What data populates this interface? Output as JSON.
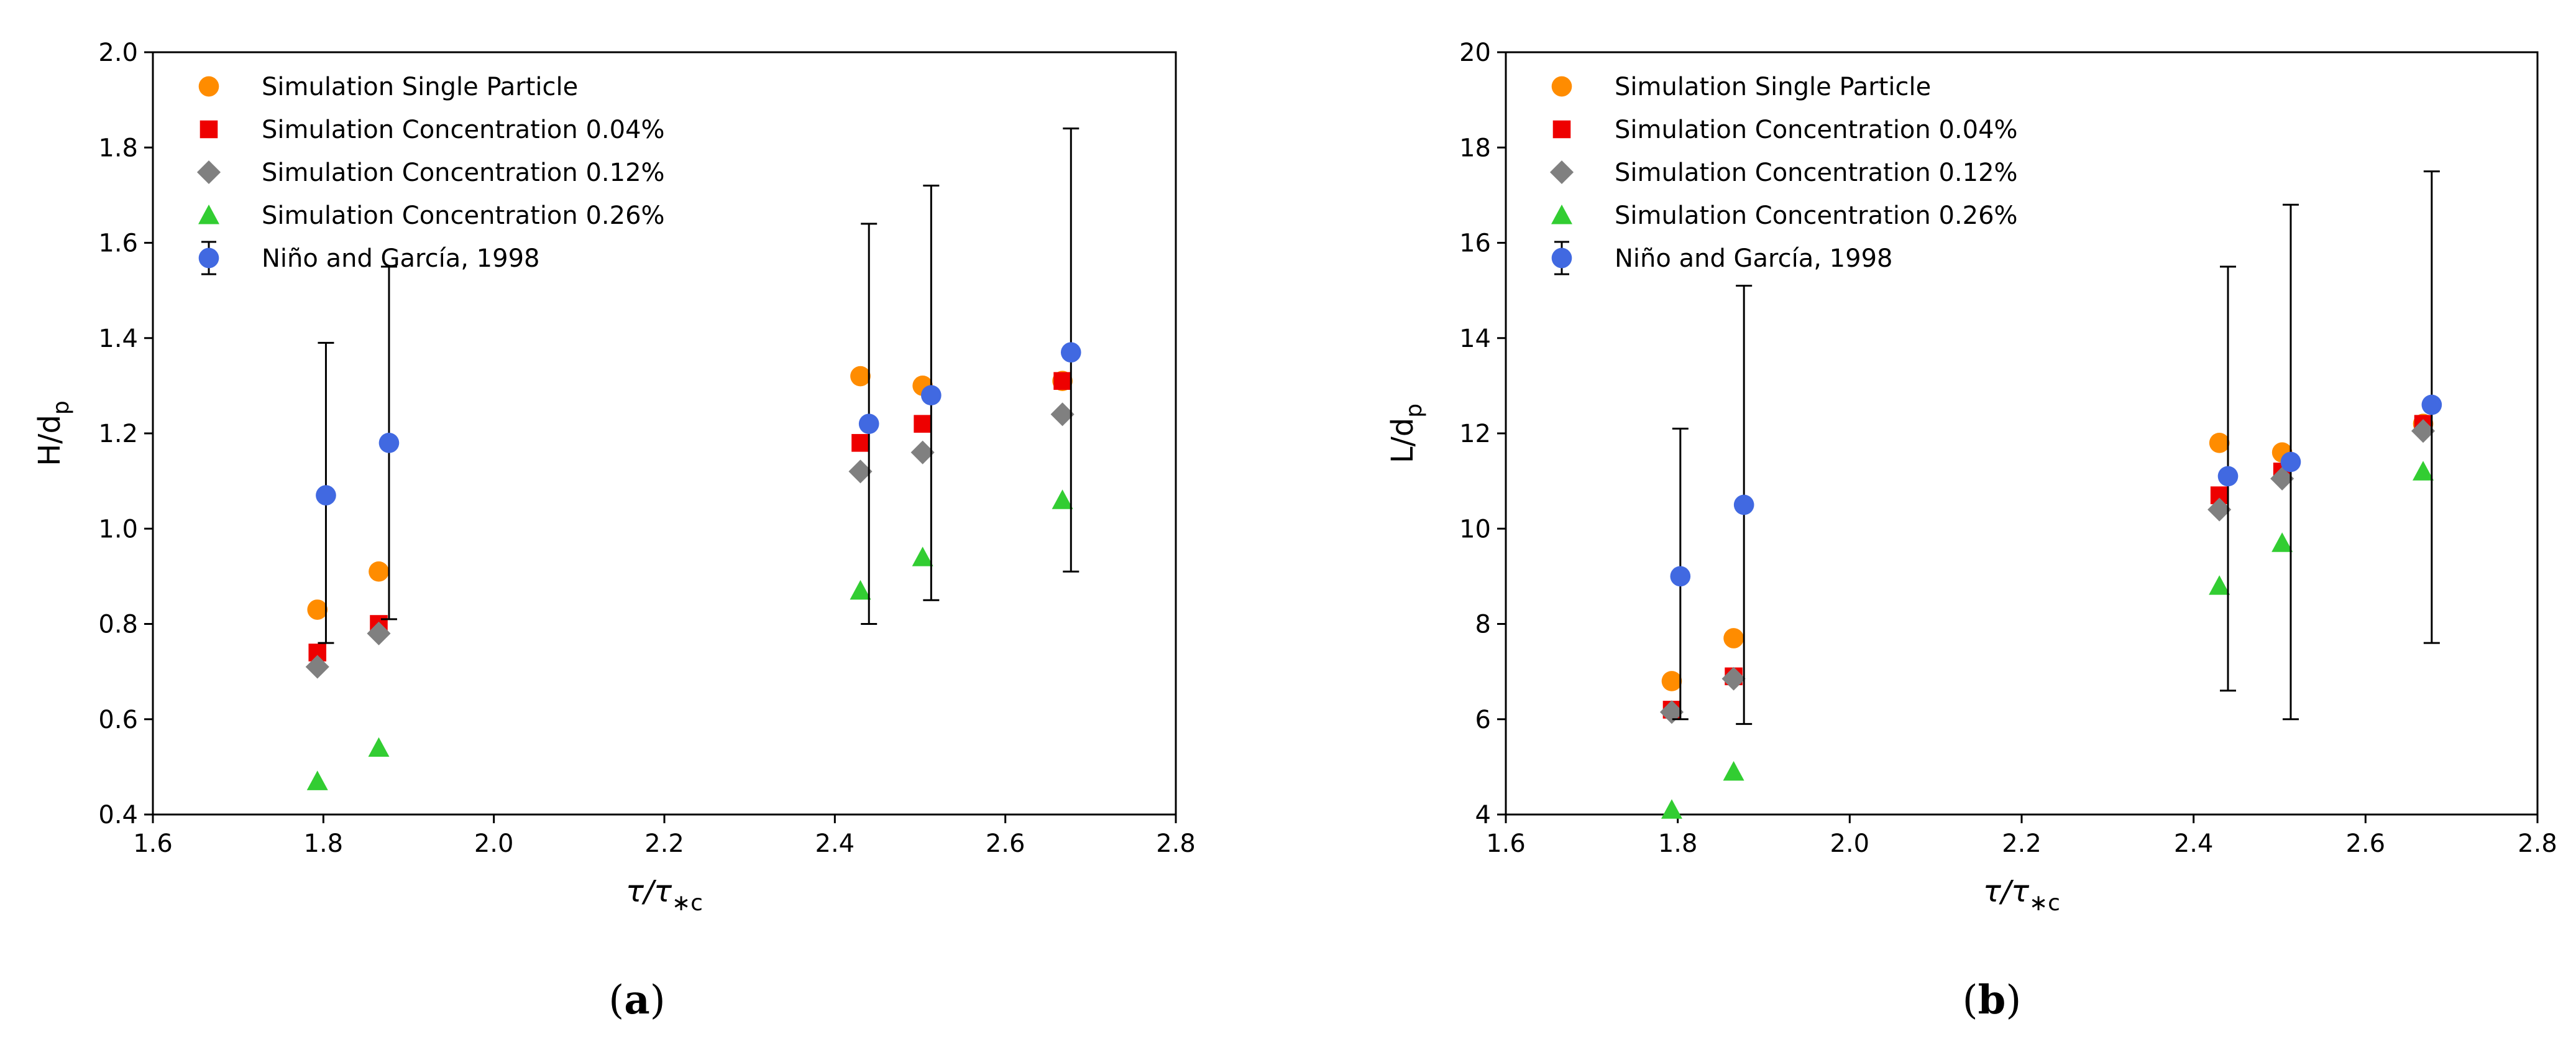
{
  "chart_data": [
    {
      "type": "scatter",
      "panel_label_pre": "(",
      "panel_label_letter": "a",
      "panel_label_post": ")",
      "xlabel_main": "τ/τ",
      "xlabel_sub": "∗c",
      "ylabel_main": "H/d",
      "ylabel_sub": "p",
      "xlim": [
        1.6,
        2.8
      ],
      "ylim": [
        0.4,
        2.0
      ],
      "xticks": [
        "1.6",
        "1.8",
        "2.0",
        "2.2",
        "2.4",
        "2.6",
        "2.8"
      ],
      "yticks": [
        "0.4",
        "0.6",
        "0.8",
        "1.0",
        "1.2",
        "1.4",
        "1.6",
        "1.8",
        "2.0"
      ],
      "legend_position": "top-left",
      "series": [
        {
          "name": "Simulation Single Particle",
          "marker": "circle",
          "color": "#ff8c00",
          "points": [
            [
              1.793,
              0.83
            ],
            [
              1.865,
              0.91
            ],
            [
              2.43,
              1.32
            ],
            [
              2.503,
              1.3
            ],
            [
              2.667,
              1.31
            ]
          ]
        },
        {
          "name": "Simulation Concentration 0.04%",
          "marker": "square",
          "color": "#ee0000",
          "points": [
            [
              1.793,
              0.74
            ],
            [
              1.865,
              0.8
            ],
            [
              2.43,
              1.18
            ],
            [
              2.503,
              1.22
            ],
            [
              2.667,
              1.31
            ]
          ]
        },
        {
          "name": "Simulation Concentration 0.12%",
          "marker": "diamond",
          "color": "#808080",
          "points": [
            [
              1.793,
              0.71
            ],
            [
              1.865,
              0.78
            ],
            [
              2.43,
              1.12
            ],
            [
              2.503,
              1.16
            ],
            [
              2.667,
              1.24
            ]
          ]
        },
        {
          "name": "Simulation Concentration 0.26%",
          "marker": "triangle",
          "color": "#32cd32",
          "points": [
            [
              1.793,
              0.47
            ],
            [
              1.865,
              0.54
            ],
            [
              2.43,
              0.87
            ],
            [
              2.503,
              0.94
            ],
            [
              2.667,
              1.06
            ]
          ]
        },
        {
          "name": "Niño and García, 1998",
          "marker": "circle",
          "color": "#4169e1",
          "errorbars": true,
          "points": [
            [
              1.803,
              1.07
            ],
            [
              1.877,
              1.18
            ],
            [
              2.44,
              1.22
            ],
            [
              2.513,
              1.28
            ],
            [
              2.677,
              1.37
            ]
          ],
          "error_low": [
            0.76,
            0.81,
            0.8,
            0.85,
            0.91
          ],
          "error_high": [
            1.39,
            1.55,
            1.64,
            1.72,
            1.84
          ]
        }
      ]
    },
    {
      "type": "scatter",
      "panel_label_pre": "(",
      "panel_label_letter": "b",
      "panel_label_post": ")",
      "xlabel_main": "τ/τ",
      "xlabel_sub": "∗c",
      "ylabel_main": "L/d",
      "ylabel_sub": "p",
      "xlim": [
        1.6,
        2.8
      ],
      "ylim": [
        4,
        20
      ],
      "xticks": [
        "1.6",
        "1.8",
        "2.0",
        "2.2",
        "2.4",
        "2.6",
        "2.8"
      ],
      "yticks": [
        "4",
        "6",
        "8",
        "10",
        "12",
        "14",
        "16",
        "18",
        "20"
      ],
      "legend_position": "top-left",
      "series": [
        {
          "name": "Simulation Single Particle",
          "marker": "circle",
          "color": "#ff8c00",
          "points": [
            [
              1.793,
              6.8
            ],
            [
              1.865,
              7.7
            ],
            [
              2.43,
              11.8
            ],
            [
              2.503,
              11.6
            ],
            [
              2.667,
              12.2
            ]
          ]
        },
        {
          "name": "Simulation Concentration 0.04%",
          "marker": "square",
          "color": "#ee0000",
          "points": [
            [
              1.793,
              6.2
            ],
            [
              1.865,
              6.9
            ],
            [
              2.43,
              10.7
            ],
            [
              2.503,
              11.2
            ],
            [
              2.667,
              12.2
            ]
          ]
        },
        {
          "name": "Simulation Concentration 0.12%",
          "marker": "diamond",
          "color": "#808080",
          "points": [
            [
              1.793,
              6.15
            ],
            [
              1.865,
              6.85
            ],
            [
              2.43,
              10.4
            ],
            [
              2.503,
              11.05
            ],
            [
              2.667,
              12.05
            ]
          ]
        },
        {
          "name": "Simulation Concentration 0.26%",
          "marker": "triangle",
          "color": "#32cd32",
          "points": [
            [
              1.793,
              4.1
            ],
            [
              1.865,
              4.9
            ],
            [
              2.43,
              8.8
            ],
            [
              2.503,
              9.7
            ],
            [
              2.667,
              11.2
            ]
          ]
        },
        {
          "name": "Niño and García, 1998",
          "marker": "circle",
          "color": "#4169e1",
          "errorbars": true,
          "points": [
            [
              1.803,
              9.0
            ],
            [
              1.877,
              10.5
            ],
            [
              2.44,
              11.1
            ],
            [
              2.513,
              11.4
            ],
            [
              2.677,
              12.6
            ]
          ],
          "error_low": [
            6.0,
            5.9,
            6.6,
            6.0,
            7.6
          ],
          "error_high": [
            12.1,
            15.1,
            15.5,
            16.8,
            17.5
          ]
        }
      ]
    }
  ]
}
